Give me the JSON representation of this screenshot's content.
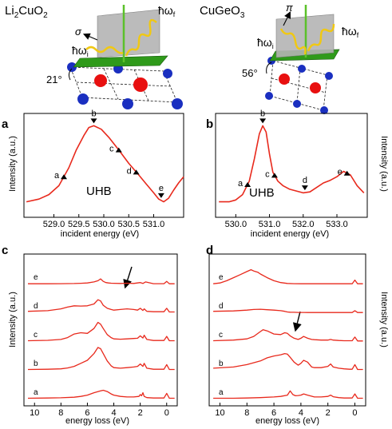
{
  "figure": {
    "left_title_main": "Li",
    "left_title_sub1": "2",
    "left_title_mid": "CuO",
    "left_title_sub2": "2",
    "right_title": "CuGeO",
    "right_title_sub": "3",
    "left_angle": "21°",
    "right_angle": "56°",
    "left_pol": "σ",
    "right_pol": "π",
    "hw": "ħω",
    "sub_i": "i",
    "sub_f": "f",
    "uhb": "UHB",
    "intensity_label": "Intensity (a.u.)",
    "incident_label": "incident energy (eV)",
    "loss_label": "energy loss (eV)"
  },
  "chart_data": [
    {
      "panel": "a",
      "type": "line",
      "xlabel": "incident energy (eV)",
      "ylabel": "Intensity (a.u.)",
      "xlim": [
        528.4,
        531.6
      ],
      "x_ticks": [
        "529.0",
        "529.5",
        "530.0",
        "530.5",
        "531.0"
      ],
      "x_tick_values": [
        529.0,
        529.5,
        530.0,
        530.5,
        531.0
      ],
      "series": [
        {
          "color": "#e8291c",
          "x": [
            528.45,
            528.7,
            528.9,
            529.1,
            529.3,
            529.45,
            529.6,
            529.7,
            529.8,
            529.95,
            530.1,
            530.3,
            530.5,
            530.7,
            530.85,
            531.0,
            531.1,
            531.2,
            531.3,
            531.4,
            531.5,
            531.6
          ],
          "y": [
            0.12,
            0.15,
            0.2,
            0.3,
            0.5,
            0.7,
            0.86,
            0.95,
            0.97,
            0.93,
            0.84,
            0.7,
            0.55,
            0.42,
            0.32,
            0.22,
            0.15,
            0.12,
            0.16,
            0.25,
            0.33,
            0.4
          ]
        }
      ],
      "markers": [
        {
          "label": "a",
          "x": 529.2,
          "dir": "up"
        },
        {
          "label": "b",
          "x": 529.8,
          "dir": "down"
        },
        {
          "label": "c",
          "x": 530.3,
          "dir": "up"
        },
        {
          "label": "d",
          "x": 530.65,
          "dir": "up"
        },
        {
          "label": "e",
          "x": 531.15,
          "dir": "down"
        }
      ]
    },
    {
      "panel": "b",
      "type": "line",
      "xlabel": "incident energy (eV)",
      "ylabel": "Intensity (a.u.)",
      "xlim": [
        529.4,
        533.9
      ],
      "x_ticks": [
        "530.0",
        "531.0",
        "532.0",
        "533.0"
      ],
      "x_tick_values": [
        530.0,
        531.0,
        532.0,
        533.0
      ],
      "series": [
        {
          "color": "#e8291c",
          "x": [
            529.5,
            529.8,
            530.0,
            530.2,
            530.4,
            530.55,
            530.7,
            530.8,
            530.9,
            531.0,
            531.1,
            531.25,
            531.4,
            531.6,
            531.8,
            532.0,
            532.2,
            532.4,
            532.6,
            532.8,
            533.0,
            533.2,
            533.4,
            533.6,
            533.8
          ],
          "y": [
            0.12,
            0.12,
            0.14,
            0.2,
            0.35,
            0.6,
            0.88,
            0.97,
            0.9,
            0.65,
            0.45,
            0.35,
            0.3,
            0.26,
            0.24,
            0.22,
            0.23,
            0.28,
            0.33,
            0.36,
            0.4,
            0.46,
            0.42,
            0.3,
            0.22
          ]
        }
      ],
      "markers": [
        {
          "label": "a",
          "x": 530.35,
          "dir": "up"
        },
        {
          "label": "b",
          "x": 530.8,
          "dir": "down"
        },
        {
          "label": "c",
          "x": 531.15,
          "dir": "up"
        },
        {
          "label": "d",
          "x": 532.05,
          "dir": "down"
        },
        {
          "label": "e",
          "x": 533.3,
          "dir": "up"
        }
      ]
    },
    {
      "panel": "c",
      "type": "line",
      "xlabel": "energy loss (eV)",
      "ylabel": "Intensity (a.u.)",
      "xlim": [
        10.8,
        -0.8
      ],
      "x_ticks": [
        "10",
        "8",
        "6",
        "4",
        "2",
        "0"
      ],
      "x_tick_values": [
        10,
        8,
        6,
        4,
        2,
        0
      ],
      "series": [
        {
          "name": "a",
          "offset": 0.0,
          "x": [
            10.5,
            9,
            8,
            7,
            6.5,
            6,
            5.5,
            5,
            4.8,
            4.5,
            4.2,
            4,
            3.5,
            3,
            2.5,
            2.1,
            2,
            1.9,
            1.8,
            1.7,
            1.5,
            1,
            0.5,
            0.2,
            0,
            -0.2,
            -0.6
          ],
          "y": [
            0.1,
            0.12,
            0.14,
            0.18,
            0.25,
            0.35,
            0.55,
            0.7,
            0.75,
            0.65,
            0.45,
            0.35,
            0.25,
            0.2,
            0.2,
            0.25,
            0.4,
            0.3,
            0.55,
            0.25,
            0.15,
            0.12,
            0.12,
            0.12,
            0.5,
            0.1,
            0.1
          ]
        },
        {
          "name": "b",
          "offset": 1.0,
          "x": [
            10.5,
            9,
            8,
            7.5,
            7,
            6.5,
            6,
            5.5,
            5.2,
            5,
            4.8,
            4.5,
            4.2,
            4,
            3.5,
            3,
            2.5,
            2.2,
            2,
            1.8,
            1.7,
            1.5,
            1,
            0.5,
            0.2,
            0,
            -0.2,
            -0.6
          ],
          "y": [
            0.1,
            0.12,
            0.15,
            0.22,
            0.35,
            0.6,
            0.85,
            1.4,
            1.9,
            1.8,
            1.4,
            0.8,
            0.4,
            0.25,
            0.2,
            0.25,
            0.3,
            0.35,
            0.55,
            0.35,
            0.6,
            0.2,
            0.12,
            0.12,
            0.12,
            0.5,
            0.1,
            0.1
          ]
        },
        {
          "name": "c",
          "offset": 2.0,
          "x": [
            10.5,
            9,
            8,
            7.5,
            7,
            6.5,
            6,
            5.5,
            5.2,
            5,
            4.8,
            4.5,
            4.2,
            4,
            3.5,
            3,
            2.5,
            2.2,
            2,
            1.8,
            1.7,
            1.5,
            1,
            0.5,
            0.2,
            0,
            -0.2,
            -0.6
          ],
          "y": [
            0.1,
            0.13,
            0.2,
            0.35,
            0.65,
            0.75,
            0.7,
            1.1,
            1.6,
            1.45,
            1.1,
            0.6,
            0.35,
            0.25,
            0.22,
            0.25,
            0.28,
            0.3,
            0.5,
            0.32,
            0.55,
            0.2,
            0.12,
            0.12,
            0.12,
            0.45,
            0.1,
            0.1
          ]
        },
        {
          "name": "d",
          "offset": 3.0,
          "x": [
            10.5,
            9,
            8,
            7.5,
            7,
            6.5,
            6,
            5.5,
            5.2,
            5,
            4.8,
            4.5,
            4.2,
            4,
            3.5,
            3,
            2.5,
            2.2,
            2,
            1.8,
            1.7,
            1.5,
            1,
            0.5,
            0.2,
            0,
            -0.2,
            -0.6
          ],
          "y": [
            0.15,
            0.2,
            0.35,
            0.5,
            0.6,
            0.58,
            0.6,
            0.75,
            1.1,
            1.0,
            0.65,
            0.4,
            0.3,
            0.25,
            0.3,
            0.35,
            0.3,
            0.25,
            0.4,
            0.22,
            0.35,
            0.15,
            0.12,
            0.12,
            0.12,
            0.4,
            0.1,
            0.1
          ]
        },
        {
          "name": "e",
          "offset": 4.0,
          "x": [
            10.5,
            9,
            8,
            7,
            6.5,
            6,
            5.5,
            5.2,
            5,
            4.8,
            4.6,
            4.4,
            4.2,
            4,
            3.5,
            3,
            2.5,
            2,
            1.8,
            1.6,
            1,
            0.5,
            0.2,
            0,
            -0.2,
            -0.6
          ],
          "y": [
            0.05,
            0.05,
            0.06,
            0.07,
            0.09,
            0.12,
            0.2,
            0.3,
            0.45,
            0.25,
            0.15,
            0.12,
            0.1,
            0.09,
            0.08,
            0.1,
            0.08,
            0.15,
            0.08,
            0.2,
            0.06,
            0.06,
            0.06,
            0.25,
            0.05,
            0.05
          ]
        }
      ]
    },
    {
      "panel": "d",
      "type": "line",
      "xlabel": "energy loss (eV)",
      "ylabel": "Intensity (a.u.)",
      "xlim": [
        10.8,
        -0.8
      ],
      "x_ticks": [
        "10",
        "8",
        "6",
        "4",
        "2",
        "0"
      ],
      "x_tick_values": [
        10,
        8,
        6,
        4,
        2,
        0
      ],
      "series": [
        {
          "name": "a",
          "offset": 0.0,
          "x": [
            10.5,
            9,
            8,
            7,
            6,
            5.5,
            5,
            4.8,
            4.6,
            4.4,
            4.2,
            4,
            3.8,
            3.5,
            3,
            2.5,
            2,
            1.8,
            1.6,
            1.2,
            0.8,
            0.4,
            0.2,
            0,
            -0.2,
            -0.6
          ],
          "y": [
            0.1,
            0.1,
            0.12,
            0.15,
            0.2,
            0.25,
            0.35,
            0.7,
            0.4,
            0.3,
            0.32,
            0.35,
            0.45,
            0.35,
            0.2,
            0.2,
            0.25,
            0.35,
            0.22,
            0.15,
            0.12,
            0.12,
            0.12,
            0.45,
            0.1,
            0.1
          ]
        },
        {
          "name": "b",
          "offset": 1.0,
          "x": [
            10.5,
            9,
            8,
            7,
            6.5,
            6,
            5.5,
            5.2,
            5,
            4.8,
            4.5,
            4.2,
            4,
            3.8,
            3.5,
            3.2,
            3,
            2.5,
            2,
            1.8,
            1.6,
            1.2,
            0.8,
            0.4,
            0.2,
            0,
            -0.2,
            -0.6
          ],
          "y": [
            0.2,
            0.3,
            0.5,
            0.8,
            1.05,
            1.2,
            1.3,
            1.4,
            1.35,
            1.1,
            0.7,
            0.45,
            0.6,
            0.85,
            0.7,
            0.3,
            0.25,
            0.25,
            0.35,
            0.55,
            0.3,
            0.2,
            0.15,
            0.12,
            0.12,
            0.5,
            0.1,
            0.1
          ]
        },
        {
          "name": "c",
          "offset": 2.0,
          "x": [
            10.5,
            9,
            8,
            7.5,
            7,
            6.8,
            6.5,
            6,
            5.5,
            5.2,
            5,
            4.8,
            4.5,
            4.2,
            4,
            3.8,
            3.5,
            3.2,
            3,
            2.5,
            2,
            1.8,
            1.6,
            1.2,
            0.8,
            0.4,
            0.2,
            0,
            -0.2,
            -0.6
          ],
          "y": [
            0.1,
            0.15,
            0.25,
            0.45,
            0.85,
            1.0,
            0.9,
            0.65,
            0.6,
            0.75,
            0.7,
            0.5,
            0.3,
            0.2,
            0.3,
            0.45,
            0.3,
            0.2,
            0.18,
            0.15,
            0.15,
            0.2,
            0.15,
            0.12,
            0.1,
            0.1,
            0.1,
            0.4,
            0.08,
            0.08
          ]
        },
        {
          "name": "d",
          "offset": 3.0,
          "x": [
            10.5,
            9,
            8,
            7.5,
            7,
            6.5,
            6,
            5.5,
            5.2,
            5,
            4.8,
            4.5,
            4.2,
            4,
            3.5,
            3,
            2.5,
            2,
            1.5,
            1,
            0.5,
            0.2,
            0,
            -0.2,
            -0.6
          ],
          "y": [
            0.15,
            0.18,
            0.25,
            0.3,
            0.32,
            0.28,
            0.25,
            0.2,
            0.15,
            0.1,
            0.08,
            0.07,
            0.06,
            0.06,
            0.05,
            0.05,
            0.05,
            0.05,
            0.05,
            0.05,
            0.05,
            0.05,
            0.2,
            0.05,
            0.05
          ]
        },
        {
          "name": "e",
          "offset": 4.0,
          "x": [
            10.5,
            10,
            9.5,
            9,
            8.5,
            8,
            7.7,
            7.5,
            7.2,
            7,
            6.5,
            6,
            5.5,
            5,
            4.5,
            4,
            3.5,
            3,
            2.5,
            2,
            1.5,
            1,
            0.5,
            0.2,
            0,
            -0.2,
            -0.6
          ],
          "y": [
            0.05,
            0.12,
            0.3,
            0.55,
            0.8,
            1.05,
            1.2,
            1.1,
            1.0,
            0.85,
            0.55,
            0.3,
            0.15,
            0.08,
            0.06,
            0.05,
            0.05,
            0.05,
            0.05,
            0.05,
            0.05,
            0.05,
            0.05,
            0.05,
            0.35,
            0.05,
            0.05
          ]
        }
      ]
    }
  ]
}
